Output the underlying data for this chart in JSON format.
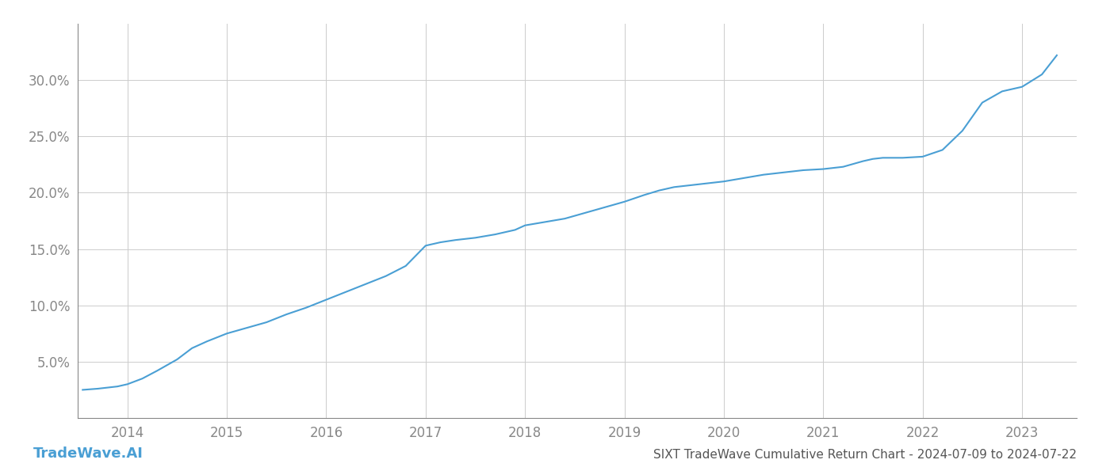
{
  "title": "SIXT TradeWave Cumulative Return Chart - 2024-07-09 to 2024-07-22",
  "watermark": "TradeWave.AI",
  "line_color": "#4a9fd4",
  "background_color": "#ffffff",
  "grid_color": "#cccccc",
  "x_values": [
    2013.55,
    2013.7,
    2013.9,
    2014.0,
    2014.15,
    2014.3,
    2014.5,
    2014.65,
    2014.8,
    2015.0,
    2015.2,
    2015.4,
    2015.6,
    2015.8,
    2016.0,
    2016.2,
    2016.4,
    2016.6,
    2016.8,
    2017.0,
    2017.15,
    2017.3,
    2017.5,
    2017.7,
    2017.9,
    2018.0,
    2018.2,
    2018.4,
    2018.6,
    2018.8,
    2019.0,
    2019.2,
    2019.35,
    2019.5,
    2019.7,
    2019.9,
    2020.0,
    2020.2,
    2020.4,
    2020.6,
    2020.8,
    2021.0,
    2021.2,
    2021.4,
    2021.5,
    2021.6,
    2021.8,
    2022.0,
    2022.2,
    2022.4,
    2022.6,
    2022.8,
    2023.0,
    2023.2,
    2023.35
  ],
  "y_values": [
    2.5,
    2.6,
    2.8,
    3.0,
    3.5,
    4.2,
    5.2,
    6.2,
    6.8,
    7.5,
    8.0,
    8.5,
    9.2,
    9.8,
    10.5,
    11.2,
    11.9,
    12.6,
    13.5,
    15.3,
    15.6,
    15.8,
    16.0,
    16.3,
    16.7,
    17.1,
    17.4,
    17.7,
    18.2,
    18.7,
    19.2,
    19.8,
    20.2,
    20.5,
    20.7,
    20.9,
    21.0,
    21.3,
    21.6,
    21.8,
    22.0,
    22.1,
    22.3,
    22.8,
    23.0,
    23.1,
    23.1,
    23.2,
    23.8,
    25.5,
    28.0,
    29.0,
    29.4,
    30.5,
    32.2
  ],
  "xlim": [
    2013.5,
    2023.55
  ],
  "ylim": [
    0,
    35
  ],
  "yticks": [
    5.0,
    10.0,
    15.0,
    20.0,
    25.0,
    30.0
  ],
  "xticks": [
    2014,
    2015,
    2016,
    2017,
    2018,
    2019,
    2020,
    2021,
    2022,
    2023
  ],
  "line_width": 1.5,
  "title_fontsize": 11,
  "tick_fontsize": 12,
  "watermark_fontsize": 13,
  "tick_color": "#888888",
  "title_color": "#555555",
  "spine_color": "#888888"
}
